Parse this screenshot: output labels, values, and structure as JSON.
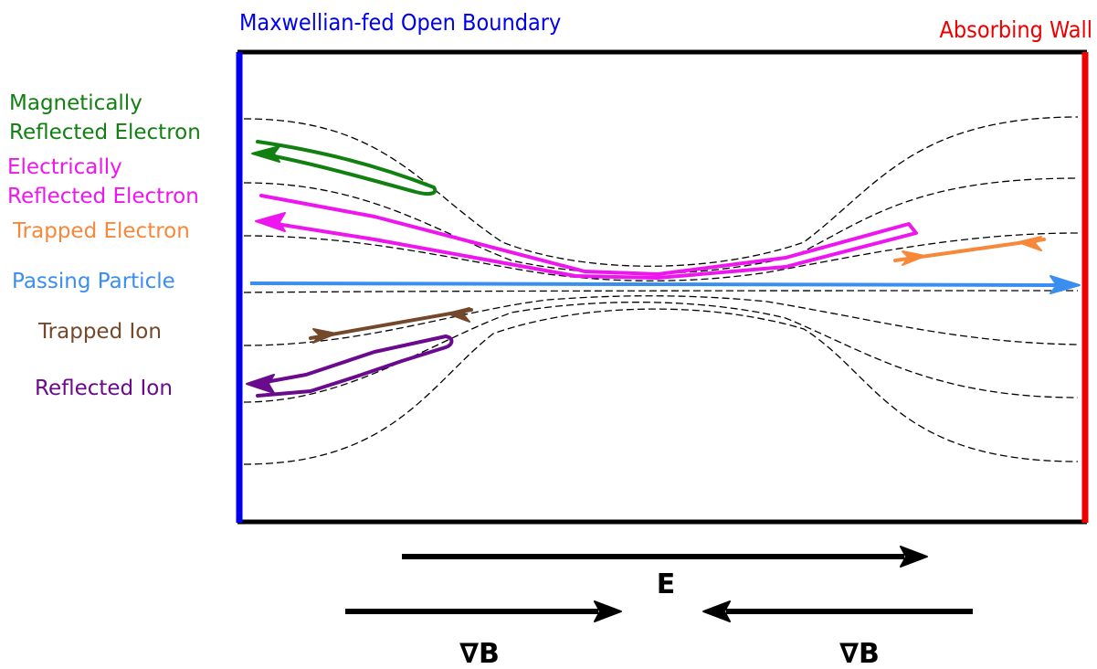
{
  "headers": {
    "left_boundary": "Maxwellian-fed Open Boundary",
    "right_boundary": "Absorbing Wall"
  },
  "legend": [
    {
      "id": "mag",
      "lines": [
        "Magnetically",
        "Reflected Electron"
      ],
      "color": "#118011"
    },
    {
      "id": "elec",
      "lines": [
        "Electrically",
        "Reflected Electron"
      ],
      "color": "#ee16ee"
    },
    {
      "id": "trapped_e",
      "lines": [
        "Trapped Electron"
      ],
      "color": "#f7883a"
    },
    {
      "id": "passing",
      "lines": [
        "Passing Particle"
      ],
      "color": "#3a8ef0"
    },
    {
      "id": "trapped_i",
      "lines": [
        "Trapped Ion"
      ],
      "color": "#74482a"
    },
    {
      "id": "refl_i",
      "lines": [
        "Reflected Ion"
      ],
      "color": "#6a0a8c"
    }
  ],
  "vectors": {
    "e_field": "E",
    "grad_b_left": "∇B",
    "grad_b_right": "∇B"
  },
  "colors": {
    "left_wall": "#0000ee",
    "right_wall": "#ee0000",
    "frame": "#000000"
  }
}
